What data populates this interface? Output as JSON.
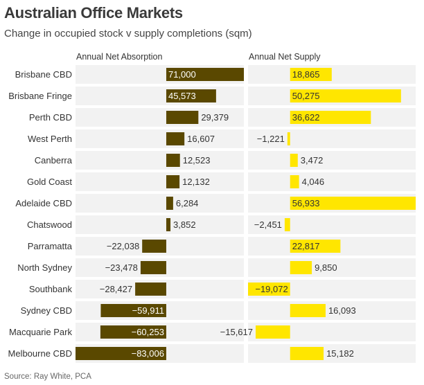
{
  "title": "Australian Office Markets",
  "subtitle": "Change in occupied stock v supply completions (sqm)",
  "source": "Source: Ray White, PCA",
  "colors": {
    "absorption": "#5a4800",
    "supply": "#ffe600",
    "band": "#f2f2f2"
  },
  "chart_data": [
    {
      "type": "bar",
      "orientation": "horizontal",
      "title": "Annual Net Absorption",
      "categories": [
        "Brisbane CBD",
        "Brisbane Fringe",
        "Perth CBD",
        "West Perth",
        "Canberra",
        "Gold Coast",
        "Adelaide CBD",
        "Chatswood",
        "Parramatta",
        "North Sydney",
        "Southbank",
        "Sydney CBD",
        "Macquarie Park",
        "Melbourne CBD"
      ],
      "values": [
        71000,
        45573,
        29379,
        16607,
        12523,
        12132,
        6284,
        3852,
        -22038,
        -23478,
        -28427,
        -59911,
        -60253,
        -83006
      ],
      "labels": [
        "71,000",
        "45,573",
        "29,379",
        "16,607",
        "12,523",
        "12,132",
        "6,284",
        "3,852",
        "−22,038",
        "−23,478",
        "−28,427",
        "−59,911",
        "−60,253",
        "−83,006"
      ],
      "xlim": [
        -83006,
        71000
      ]
    },
    {
      "type": "bar",
      "orientation": "horizontal",
      "title": "Annual Net Supply",
      "categories": [
        "Brisbane CBD",
        "Brisbane Fringe",
        "Perth CBD",
        "West Perth",
        "Canberra",
        "Gold Coast",
        "Adelaide CBD",
        "Chatswood",
        "Parramatta",
        "North Sydney",
        "Southbank",
        "Sydney CBD",
        "Macquarie Park",
        "Melbourne CBD"
      ],
      "values": [
        18865,
        50275,
        36622,
        -1221,
        3472,
        4046,
        56933,
        -2451,
        22817,
        9850,
        -19072,
        16093,
        -15617,
        15182
      ],
      "labels": [
        "18,865",
        "50,275",
        "36,622",
        "−1,221",
        "3,472",
        "4,046",
        "56,933",
        "−2,451",
        "22,817",
        "9,850",
        "−19,072",
        "16,093",
        "−15,617",
        "15,182"
      ],
      "xlim": [
        -19072,
        56933
      ]
    }
  ]
}
